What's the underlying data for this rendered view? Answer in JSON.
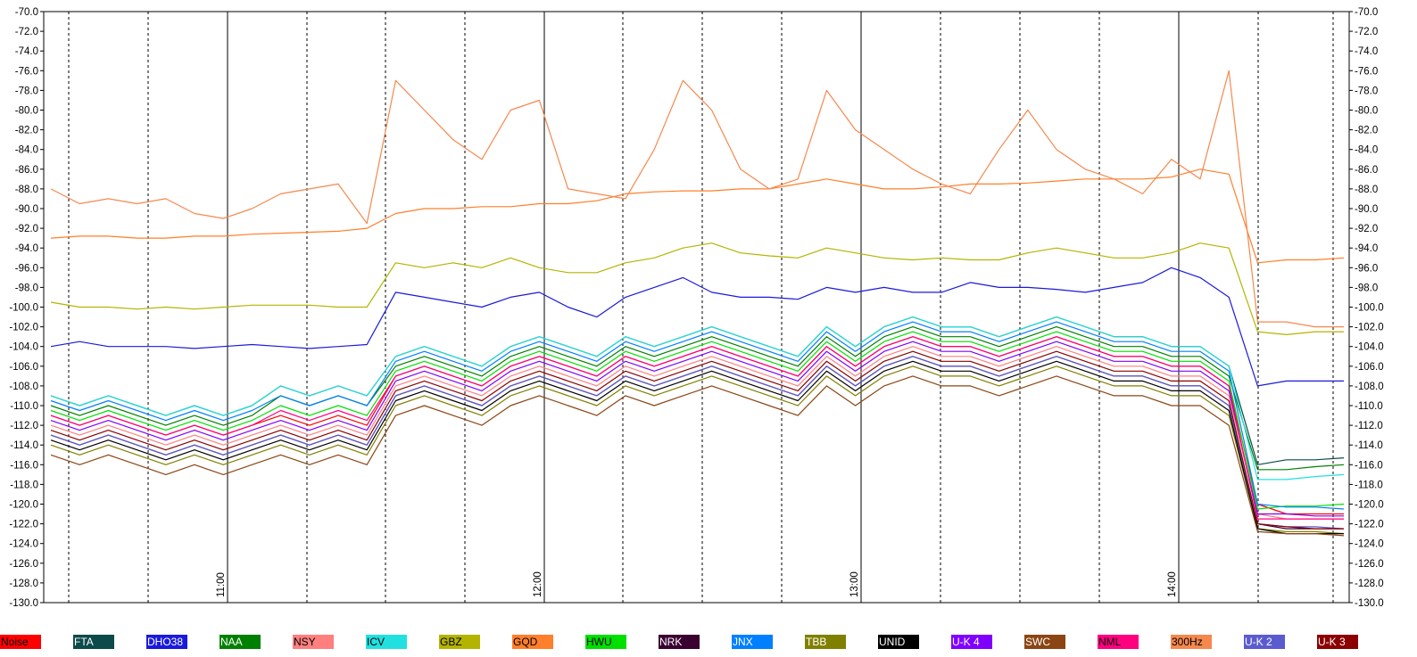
{
  "chart_data": {
    "type": "line",
    "title": "",
    "xlabel": "",
    "ylabel": "",
    "ylim": [
      -130,
      -70
    ],
    "yticks": [
      "-70.0",
      "-72.0",
      "-74.0",
      "-76.0",
      "-78.0",
      "-80.0",
      "-82.0",
      "-84.0",
      "-86.0",
      "-88.0",
      "-90.0",
      "-92.0",
      "-94.0",
      "-96.0",
      "-98.0",
      "-100.0",
      "-102.0",
      "-104.0",
      "-106.0",
      "-108.0",
      "-110.0",
      "-112.0",
      "-114.0",
      "-116.0",
      "-118.0",
      "-120.0",
      "-122.0",
      "-124.0",
      "-126.0",
      "-128.0",
      "-130.0"
    ],
    "x_time_labels": [
      "11:00",
      "12:00",
      "13:00",
      "14:00"
    ],
    "grid": true,
    "legend_position": "bottom",
    "series": [
      {
        "name": "Noise",
        "color": "#ff0000",
        "values": [
          -111,
          -112,
          -111,
          -112,
          -113,
          -112,
          -113,
          -112,
          -111,
          -112,
          -111,
          -112,
          -107,
          -106,
          -107,
          -108,
          -106,
          -105,
          -106,
          -107,
          -105,
          -106,
          -105,
          -104,
          -105,
          -106,
          -107,
          -104,
          -106,
          -104,
          -103,
          -104,
          -104,
          -105,
          -104,
          -103,
          -104,
          -105,
          -105,
          -106,
          -106,
          -108,
          -120,
          -121,
          -121,
          -121
        ]
      },
      {
        "name": "FTA",
        "color": "#0d4a4a",
        "values": [
          -109,
          -110,
          -109,
          -110,
          -111,
          -110,
          -111,
          -110,
          -108,
          -109,
          -108,
          -109,
          -105,
          -104,
          -105,
          -106,
          -104,
          -103,
          -104,
          -105,
          -103,
          -104,
          -103,
          -102,
          -103,
          -104,
          -105,
          -102,
          -104,
          -102,
          -101,
          -102,
          -102,
          -103,
          -102,
          -101,
          -102,
          -103,
          -103,
          -104,
          -104,
          -106,
          -116,
          -115.5,
          -115.5,
          -115.3
        ]
      },
      {
        "name": "DHO38",
        "color": "#1a1adb",
        "values": [
          -104,
          -103.5,
          -104,
          -104,
          -104,
          -104.2,
          -104,
          -103.8,
          -104,
          -104.2,
          -104,
          -103.8,
          -98.5,
          -99,
          -99.5,
          -100,
          -99,
          -98.5,
          -100,
          -101,
          -99,
          -98,
          -97,
          -98.5,
          -99,
          -99,
          -99.2,
          -98,
          -98.5,
          -98,
          -98.5,
          -98.5,
          -97.5,
          -98,
          -98,
          -98.2,
          -98.5,
          -98,
          -97.5,
          -96,
          -97,
          -99,
          -108,
          -107.5,
          -107.5,
          -107.5
        ]
      },
      {
        "name": "NAA",
        "color": "#008000",
        "values": [
          -110,
          -111,
          -110,
          -111,
          -112,
          -111,
          -112,
          -111,
          -109,
          -110,
          -109,
          -110,
          -106,
          -105,
          -106,
          -107,
          -105,
          -104,
          -105,
          -106,
          -104,
          -105,
          -104,
          -103,
          -104,
          -105,
          -106,
          -103,
          -105,
          -103,
          -102,
          -103,
          -103,
          -104,
          -103,
          -102,
          -103,
          -104,
          -104,
          -105,
          -105,
          -107,
          -116.5,
          -116.5,
          -116.2,
          -116
        ]
      },
      {
        "name": "NSY",
        "color": "#ff7f7f",
        "values": [
          -112,
          -113,
          -112,
          -113,
          -114,
          -113,
          -114,
          -113,
          -112,
          -113,
          -112,
          -113,
          -108,
          -107,
          -108,
          -109,
          -107,
          -106,
          -107,
          -108,
          -106,
          -107,
          -106,
          -105,
          -106,
          -107,
          -108,
          -105,
          -107,
          -105,
          -104,
          -105,
          -105,
          -106,
          -105,
          -104,
          -105,
          -106,
          -106,
          -107,
          -107,
          -109,
          -121,
          -121.5,
          -121.5,
          -121.5
        ]
      },
      {
        "name": "ICV",
        "color": "#22e0e0",
        "values": [
          -109,
          -110,
          -109,
          -110,
          -111,
          -110,
          -111,
          -110,
          -108,
          -109,
          -108,
          -109,
          -105,
          -104,
          -105,
          -106,
          -104,
          -103,
          -104,
          -105,
          -103,
          -104,
          -103,
          -102,
          -103,
          -104,
          -105,
          -102,
          -104,
          -102,
          -101,
          -102,
          -102,
          -103,
          -102,
          -101,
          -102,
          -103,
          -103,
          -104,
          -104,
          -106,
          -117.5,
          -117.5,
          -117.2,
          -117
        ]
      },
      {
        "name": "GBZ",
        "color": "#b4b400",
        "values": [
          -99.5,
          -100,
          -100,
          -100.2,
          -100,
          -100.2,
          -100,
          -99.8,
          -99.8,
          -99.8,
          -100,
          -100,
          -95.5,
          -96,
          -95.5,
          -96,
          -95,
          -96,
          -96.5,
          -96.5,
          -95.5,
          -95,
          -94,
          -93.5,
          -94.5,
          -94.8,
          -95,
          -94,
          -94.5,
          -95,
          -95.2,
          -95,
          -95.2,
          -95.2,
          -94.5,
          -94,
          -94.5,
          -95,
          -95,
          -94.5,
          -93.5,
          -94,
          -102.5,
          -102.8,
          -102.5,
          -102.5
        ]
      },
      {
        "name": "GQD",
        "color": "#ff7f2a",
        "values": [
          -93,
          -92.8,
          -92.8,
          -93,
          -93,
          -92.8,
          -92.8,
          -92.6,
          -92.5,
          -92.4,
          -92.3,
          -92,
          -90.5,
          -90,
          -90,
          -89.8,
          -89.8,
          -89.5,
          -89.5,
          -89.2,
          -88.5,
          -88.3,
          -88.2,
          -88.2,
          -88,
          -88,
          -87.5,
          -87,
          -87.5,
          -88,
          -88,
          -87.8,
          -87.5,
          -87.5,
          -87.4,
          -87.2,
          -87,
          -87,
          -87,
          -86.8,
          -86,
          -86.5,
          -95.5,
          -95.2,
          -95.2,
          -95
        ]
      },
      {
        "name": "HWU",
        "color": "#00e000",
        "values": [
          -110.5,
          -111.5,
          -110.5,
          -111.5,
          -112.5,
          -111.5,
          -112.5,
          -111.5,
          -110,
          -111,
          -110,
          -111,
          -106.5,
          -105.5,
          -106.5,
          -107.5,
          -105.5,
          -104.5,
          -105.5,
          -106.5,
          -104.5,
          -105.5,
          -104.5,
          -103.5,
          -104.5,
          -105.5,
          -106.5,
          -103.5,
          -105.5,
          -103.5,
          -102.5,
          -103.5,
          -103.5,
          -104.5,
          -103.5,
          -102.5,
          -103.5,
          -104.5,
          -104.5,
          -105.5,
          -105.5,
          -107.5,
          -120.5,
          -120.2,
          -120.2,
          -120
        ]
      },
      {
        "name": "NRK",
        "color": "#3a0030",
        "values": [
          -113,
          -114,
          -113,
          -114,
          -115,
          -114,
          -115,
          -114,
          -113,
          -114,
          -113,
          -114,
          -109,
          -108,
          -109,
          -110,
          -108,
          -107,
          -108,
          -109,
          -107,
          -108,
          -107,
          -106,
          -107,
          -108,
          -109,
          -106,
          -108,
          -106,
          -105,
          -106,
          -106,
          -107,
          -106,
          -105,
          -106,
          -107,
          -107,
          -108,
          -108,
          -110,
          -122,
          -122.5,
          -122.5,
          -122.5
        ]
      },
      {
        "name": "JNX",
        "color": "#0080ff",
        "values": [
          -109.5,
          -110.5,
          -109.5,
          -110.5,
          -111.5,
          -110.5,
          -111.5,
          -110.5,
          -109,
          -110,
          -109,
          -110,
          -105.5,
          -104.5,
          -105.5,
          -106.5,
          -104.5,
          -103.5,
          -104.5,
          -105.5,
          -103.5,
          -104.5,
          -103.5,
          -102.5,
          -103.5,
          -104.5,
          -105.5,
          -102.5,
          -104.5,
          -102.5,
          -101.5,
          -102.5,
          -102.5,
          -103.5,
          -102.5,
          -101.5,
          -102.5,
          -103.5,
          -103.5,
          -104.5,
          -104.5,
          -106.5,
          -120,
          -120.3,
          -120.3,
          -120.5
        ]
      },
      {
        "name": "TBB",
        "color": "#808000",
        "values": [
          -114,
          -115,
          -114,
          -115,
          -116,
          -115,
          -116,
          -115,
          -114,
          -115,
          -114,
          -115,
          -110,
          -109,
          -110,
          -111,
          -109,
          -108,
          -109,
          -110,
          -108,
          -109,
          -108,
          -107,
          -108,
          -109,
          -110,
          -107,
          -109,
          -107,
          -106,
          -107,
          -107,
          -108,
          -107,
          -106,
          -107,
          -108,
          -108,
          -109,
          -109,
          -111,
          -122.5,
          -122.8,
          -122.8,
          -123
        ]
      },
      {
        "name": "UNID",
        "color": "#000000",
        "values": [
          -113.5,
          -114.5,
          -113.5,
          -114.5,
          -115.5,
          -114.5,
          -115.5,
          -114.5,
          -113.5,
          -114.5,
          -113.5,
          -114.5,
          -109.5,
          -108.5,
          -109.5,
          -110.5,
          -108.5,
          -107.5,
          -108.5,
          -109.5,
          -107.5,
          -108.5,
          -107.5,
          -106.5,
          -107.5,
          -108.5,
          -109.5,
          -106.5,
          -108.5,
          -106.5,
          -105.5,
          -106.5,
          -106.5,
          -107.5,
          -106.5,
          -105.5,
          -106.5,
          -107.5,
          -107.5,
          -108.5,
          -108.5,
          -110.5,
          -122.5,
          -123,
          -123,
          -123
        ]
      },
      {
        "name": "U-K 4",
        "color": "#8000ff",
        "values": [
          -111.5,
          -112.5,
          -111.5,
          -112.5,
          -113.5,
          -112.5,
          -113.5,
          -112.5,
          -111.5,
          -112.5,
          -111.5,
          -112.5,
          -107.5,
          -106.5,
          -107.5,
          -108.5,
          -106.5,
          -105.5,
          -106.5,
          -107.5,
          -105.5,
          -106.5,
          -105.5,
          -104.5,
          -105.5,
          -106.5,
          -107.5,
          -104.5,
          -106.5,
          -104.5,
          -103.5,
          -104.5,
          -104.5,
          -105.5,
          -104.5,
          -103.5,
          -104.5,
          -105.5,
          -105.5,
          -106.5,
          -106.5,
          -108.5,
          -121,
          -121,
          -121.2,
          -121.2
        ]
      },
      {
        "name": "SWC",
        "color": "#8b4513",
        "values": [
          -115,
          -116,
          -115,
          -116,
          -117,
          -116,
          -117,
          -116,
          -115,
          -116,
          -115,
          -116,
          -111,
          -110,
          -111,
          -112,
          -110,
          -109,
          -110,
          -111,
          -109,
          -110,
          -109,
          -108,
          -109,
          -110,
          -111,
          -108,
          -110,
          -108,
          -107,
          -108,
          -108,
          -109,
          -108,
          -107,
          -108,
          -109,
          -109,
          -110,
          -110,
          -112,
          -122.8,
          -123,
          -123,
          -123.2
        ]
      },
      {
        "name": "NML",
        "color": "#ff0080",
        "values": [
          -111,
          -112,
          -111,
          -112,
          -113,
          -112,
          -113,
          -112,
          -110.5,
          -111.5,
          -110.5,
          -111.5,
          -107,
          -106,
          -107,
          -108,
          -106,
          -105,
          -106,
          -107,
          -105,
          -106,
          -105,
          -104,
          -105,
          -106,
          -107,
          -104,
          -106,
          -104,
          -103,
          -104,
          -104,
          -105,
          -104,
          -103,
          -104,
          -105,
          -105,
          -106,
          -106,
          -108,
          -121.5,
          -121.5,
          -121.5,
          -121.5
        ]
      },
      {
        "name": "300Hz",
        "color": "#f5884d",
        "values": [
          -88,
          -89.5,
          -89,
          -89.5,
          -89,
          -90.5,
          -91,
          -90,
          -88.5,
          -88,
          -87.5,
          -91.5,
          -77,
          -80,
          -83,
          -85,
          -80,
          -79,
          -88,
          -88.5,
          -89,
          -84,
          -77,
          -80,
          -86,
          -88,
          -87,
          -78,
          -82,
          -84,
          -86,
          -87.5,
          -88.5,
          -84,
          -80,
          -84,
          -86,
          -87,
          -88.5,
          -85,
          -87,
          -76,
          -101.5,
          -101.5,
          -102,
          -102
        ]
      },
      {
        "name": "U-K 2",
        "color": "#5b5bd0",
        "values": [
          -113,
          -114,
          -113,
          -114,
          -115,
          -114,
          -115,
          -114,
          -113,
          -114,
          -113,
          -114,
          -109,
          -108,
          -109,
          -110,
          -108,
          -107,
          -108,
          -109,
          -107,
          -108,
          -107,
          -106,
          -107,
          -108,
          -109,
          -106,
          -108,
          -106,
          -105,
          -106,
          -106,
          -107,
          -106,
          -105,
          -106,
          -107,
          -107,
          -108,
          -108,
          -110,
          -122,
          -122.3,
          -122.3,
          -122.5
        ]
      },
      {
        "name": "U-K 3",
        "color": "#8b0000",
        "values": [
          -112.5,
          -113.5,
          -112.5,
          -113.5,
          -114.5,
          -113.5,
          -114.5,
          -113.5,
          -112.5,
          -113.5,
          -112.5,
          -113.5,
          -108.5,
          -107.5,
          -108.5,
          -109.5,
          -107.5,
          -106.5,
          -107.5,
          -108.5,
          -106.5,
          -107.5,
          -106.5,
          -105.5,
          -106.5,
          -107.5,
          -108.5,
          -105.5,
          -107.5,
          -105.5,
          -104.5,
          -105.5,
          -105.5,
          -106.5,
          -105.5,
          -104.5,
          -105.5,
          -106.5,
          -106.5,
          -107.5,
          -107.5,
          -109.5,
          -122,
          -122.3,
          -122.5,
          -122.5
        ]
      }
    ]
  },
  "legend_text_colors": {
    "dark_text": "#000000",
    "light_text": "#ffffff"
  }
}
